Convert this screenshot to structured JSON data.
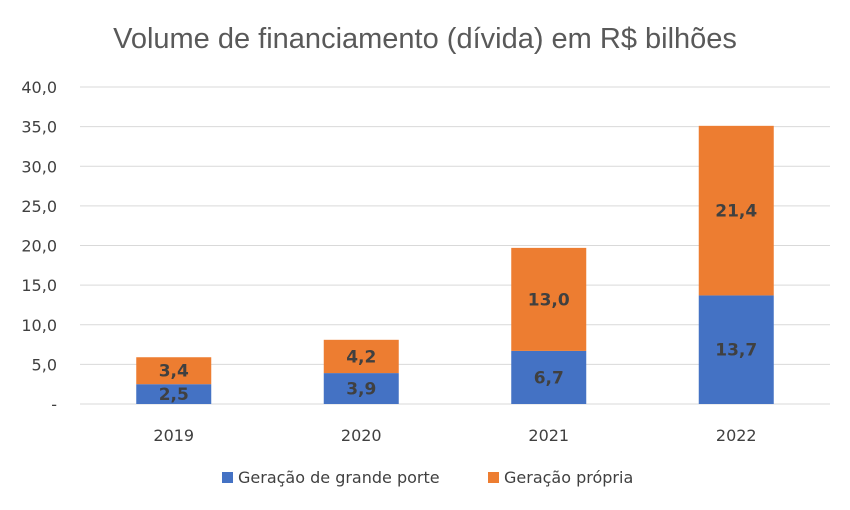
{
  "chart_data": {
    "type": "bar",
    "stacked": true,
    "title": "Volume de financiamento (dívida) em R$ bilhões",
    "xlabel": "",
    "ylabel": "",
    "categories": [
      "2019",
      "2020",
      "2021",
      "2022"
    ],
    "ylim": [
      0,
      40
    ],
    "yticks": [
      "-",
      "5,0",
      "10,0",
      "15,0",
      "20,0",
      "25,0",
      "30,0",
      "35,0",
      "40,0"
    ],
    "grid": true,
    "legend_position": "bottom",
    "series": [
      {
        "name": "Geração de grande porte",
        "color": "#4472C4",
        "values": [
          2.5,
          3.9,
          6.7,
          13.7
        ],
        "labels": [
          "2,5",
          "3,9",
          "6,7",
          "13,7"
        ]
      },
      {
        "name": "Geração própria",
        "color": "#ED7D31",
        "values": [
          3.4,
          4.2,
          13.0,
          21.4
        ],
        "labels": [
          "3,4",
          "4,2",
          "13,0",
          "21,4"
        ]
      }
    ]
  }
}
